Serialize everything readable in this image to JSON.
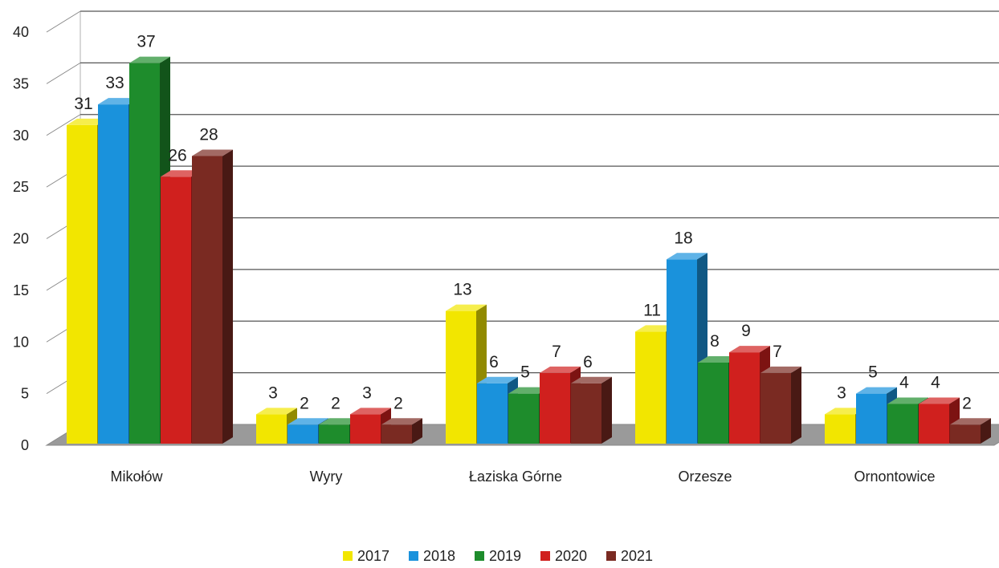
{
  "chart_data": {
    "type": "bar",
    "title": "",
    "xlabel": "",
    "ylabel": "",
    "categories": [
      "Mikołów",
      "Wyry",
      "Łaziska Górne",
      "Orzesze",
      "Ornontowice"
    ],
    "series": [
      {
        "name": "2017",
        "color": "#f2e600",
        "values": [
          31,
          3,
          13,
          11,
          3
        ]
      },
      {
        "name": "2018",
        "color": "#1a92dc",
        "values": [
          33,
          2,
          6,
          18,
          5
        ]
      },
      {
        "name": "2019",
        "color": "#1e8c2c",
        "values": [
          37,
          2,
          5,
          8,
          4
        ]
      },
      {
        "name": "2020",
        "color": "#d0201e",
        "values": [
          26,
          3,
          7,
          9,
          4
        ]
      },
      {
        "name": "2021",
        "color": "#7a2a22",
        "values": [
          28,
          2,
          6,
          7,
          2
        ]
      }
    ],
    "ylim": [
      0,
      40
    ],
    "yticks": [
      0,
      5,
      10,
      15,
      20,
      25,
      30,
      35,
      40
    ],
    "grid": true,
    "legend_position": "bottom"
  }
}
